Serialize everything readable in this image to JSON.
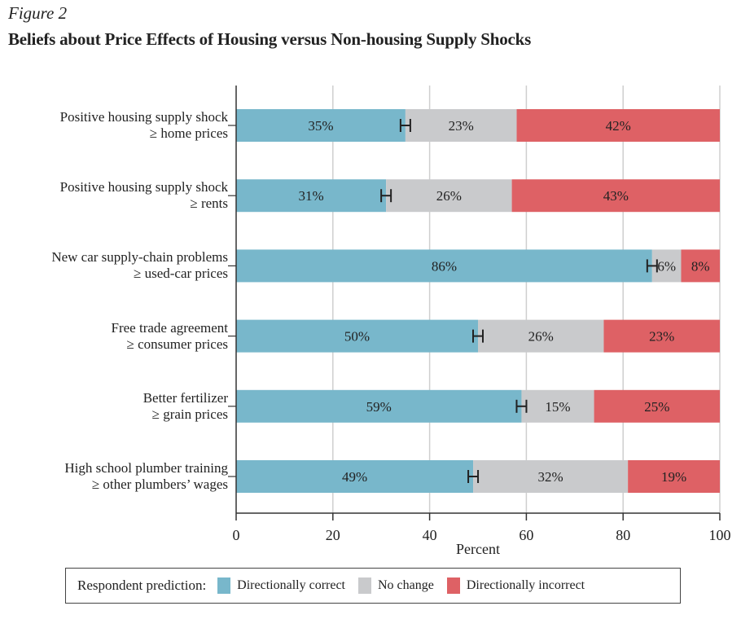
{
  "figure_label": "Figure 2",
  "chart_data": {
    "type": "bar",
    "orientation": "horizontal",
    "stacked": true,
    "title": "Beliefs about Price Effects of Housing versus Non-housing Supply Shocks",
    "xlabel": "Percent",
    "ylabel": "",
    "xlim": [
      0,
      100
    ],
    "xticks": [
      "0",
      "20",
      "40",
      "60",
      "80",
      "100"
    ],
    "grid": true,
    "categories": [
      {
        "line1": "Positive housing supply shock",
        "line2": "≥ home prices"
      },
      {
        "line1": "Positive housing supply shock",
        "line2": "≥ rents"
      },
      {
        "line1": "New car supply-chain problems",
        "line2": "≥ used-car prices"
      },
      {
        "line1": "Free trade agreement",
        "line2": "≥ consumer prices"
      },
      {
        "line1": "Better fertilizer",
        "line2": "≥ grain prices"
      },
      {
        "line1": "High school plumber training",
        "line2": "≥ other plumbers’ wages"
      }
    ],
    "series": [
      {
        "name": "Directionally correct",
        "color": "#78b7cb",
        "values": [
          35,
          31,
          86,
          50,
          59,
          49
        ],
        "labels": [
          "35%",
          "31%",
          "86%",
          "50%",
          "59%",
          "49%"
        ]
      },
      {
        "name": "No change",
        "color": "#c9cacc",
        "values": [
          23,
          26,
          6,
          26,
          15,
          32
        ],
        "labels": [
          "23%",
          "26%",
          "6%",
          "26%",
          "15%",
          "32%"
        ]
      },
      {
        "name": "Directionally incorrect",
        "color": "#de6165",
        "values": [
          42,
          43,
          8,
          23,
          25,
          19
        ],
        "labels": [
          "42%",
          "43%",
          "8%",
          "23%",
          "25%",
          "19%"
        ]
      }
    ],
    "error_bar_note": "H-shaped confidence interval markers at end of Directionally correct segment",
    "legend": {
      "title": "Respondent prediction:",
      "position": "bottom"
    }
  }
}
